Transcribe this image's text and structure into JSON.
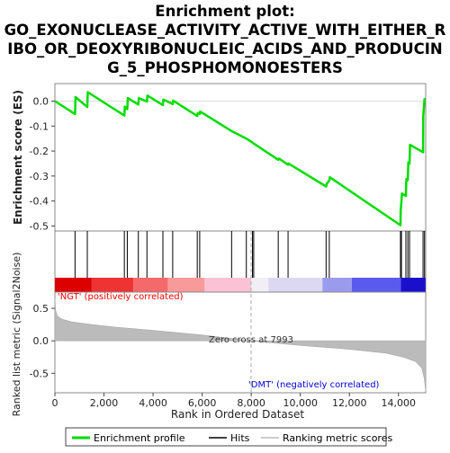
{
  "chart_data": {
    "type": "line",
    "title": "Enrichment plot: GO_EXONUCLEASE_ACTIVITY_ACTIVE_WITH_EITHER_RIBO_OR_DEOXYRIBONUCLEIC_ACIDS_AND_PRODUCING_5_PHOSPHOMONOESTERS",
    "title_lines": [
      "Enrichment plot:",
      "GO_EXONUCLEASE_ACTIVITY_ACTIVE_WITH_EITHER_R",
      "IBO_OR_DEOXYRIBONUCLEIC_ACIDS_AND_PRODUCIN",
      "G_5_PHOSPHOMONOESTERS"
    ],
    "es_panel": {
      "ylabel": "Enrichment score (ES)",
      "ylim": [
        -0.52,
        0.07
      ],
      "yticks": [
        0.0,
        -0.1,
        -0.2,
        -0.3,
        -0.4,
        -0.5
      ],
      "ytick_labels": [
        "0.0",
        "-0.1",
        "-0.2",
        "-0.3",
        "-0.4",
        "-0.5"
      ],
      "series": [
        {
          "name": "Enrichment profile",
          "color": "#00dd00",
          "x": [
            0,
            820,
            840,
            1320,
            1340,
            2830,
            2850,
            2950,
            2970,
            3400,
            3420,
            3750,
            3770,
            4400,
            4420,
            4800,
            4820,
            5800,
            5820,
            5900,
            5920,
            7200,
            7800,
            8050,
            8100,
            9100,
            9130,
            9500,
            9520,
            11050,
            11080,
            11180,
            11200,
            14080,
            14090,
            14120,
            14140,
            14300,
            14320,
            14380,
            14400,
            14450,
            14470,
            15000,
            15010,
            15060,
            15080
          ],
          "y": [
            0.0,
            -0.052,
            0.016,
            -0.024,
            0.036,
            -0.058,
            -0.022,
            -0.032,
            0.012,
            -0.014,
            0.012,
            -0.002,
            0.022,
            -0.016,
            0.006,
            -0.012,
            0.002,
            -0.06,
            -0.048,
            -0.052,
            -0.042,
            -0.12,
            -0.15,
            -0.166,
            -0.17,
            -0.235,
            -0.23,
            -0.255,
            -0.25,
            -0.342,
            -0.33,
            -0.318,
            -0.305,
            -0.497,
            -0.44,
            -0.4,
            -0.37,
            -0.38,
            -0.312,
            -0.316,
            -0.245,
            -0.25,
            -0.175,
            -0.205,
            -0.06,
            0.008,
            0.005
          ]
        }
      ]
    },
    "hits_panel": {
      "legend_name": "Hits",
      "hit_positions": [
        820,
        1320,
        2830,
        2950,
        3400,
        3750,
        4400,
        4800,
        5800,
        5900,
        7200,
        7800,
        8050,
        8100,
        9100,
        9500,
        11050,
        11180,
        14080,
        14120,
        14300,
        14380,
        14450,
        15000,
        15060
      ],
      "color_bands": [
        {
          "from": 0,
          "to": 1500,
          "color": "#dd0000"
        },
        {
          "from": 1500,
          "to": 3200,
          "color": "#ee3333"
        },
        {
          "from": 3200,
          "to": 4600,
          "color": "#f46a6a"
        },
        {
          "from": 4600,
          "to": 6100,
          "color": "#f89a9a"
        },
        {
          "from": 6100,
          "to": 7993,
          "color": "#fbc2d6"
        },
        {
          "from": 7993,
          "to": 8700,
          "color": "#f2eef5"
        },
        {
          "from": 8700,
          "to": 10900,
          "color": "#dcd8f2"
        },
        {
          "from": 10900,
          "to": 12100,
          "color": "#9b9bee"
        },
        {
          "from": 12100,
          "to": 14100,
          "color": "#5a5aee"
        },
        {
          "from": 14100,
          "to": 15100,
          "color": "#1a10cc"
        }
      ]
    },
    "metric_panel": {
      "ylabel": "Ranked list metric (Signal2Noise)",
      "xlabel": "Rank in Ordered Dataset",
      "ylim": [
        -0.8,
        0.75
      ],
      "yticks": [
        0.5,
        0.0,
        -0.5
      ],
      "ytick_labels": [
        "0.5",
        "0.0",
        "-0.5"
      ],
      "xlim": [
        0,
        15108
      ],
      "xticks": [
        0,
        2000,
        4000,
        6000,
        8000,
        10000,
        12000,
        14000
      ],
      "xtick_labels": [
        "0",
        "2,000",
        "4,000",
        "6,000",
        "8,000",
        "10,000",
        "12,000",
        "14,000"
      ],
      "metric_curve": {
        "x": [
          0,
          30,
          100,
          300,
          700,
          1500,
          2500,
          4000,
          6000,
          7993,
          10000,
          12000,
          13500,
          14200,
          14700,
          14950,
          15050,
          15108
        ],
        "y": [
          0.65,
          0.47,
          0.38,
          0.33,
          0.29,
          0.25,
          0.21,
          0.16,
          0.09,
          0.0,
          -0.07,
          -0.13,
          -0.19,
          -0.25,
          -0.32,
          -0.42,
          -0.58,
          -0.78
        ]
      },
      "zero_cross_label": "Zero cross at 7993",
      "zero_cross_x": 7993,
      "pos_label": "'NGT' (positively correlated)",
      "neg_label": "'DMT' (negatively correlated)"
    },
    "legend": {
      "items": [
        "Enrichment profile",
        "Hits",
        "Ranking metric scores"
      ],
      "placement": "bottom"
    },
    "colors": {
      "profile": "#00dd00",
      "hits": "#000000",
      "metric": "#bbbbbb",
      "pos_label": "#ff0000",
      "neg_label": "#0000dd"
    }
  }
}
